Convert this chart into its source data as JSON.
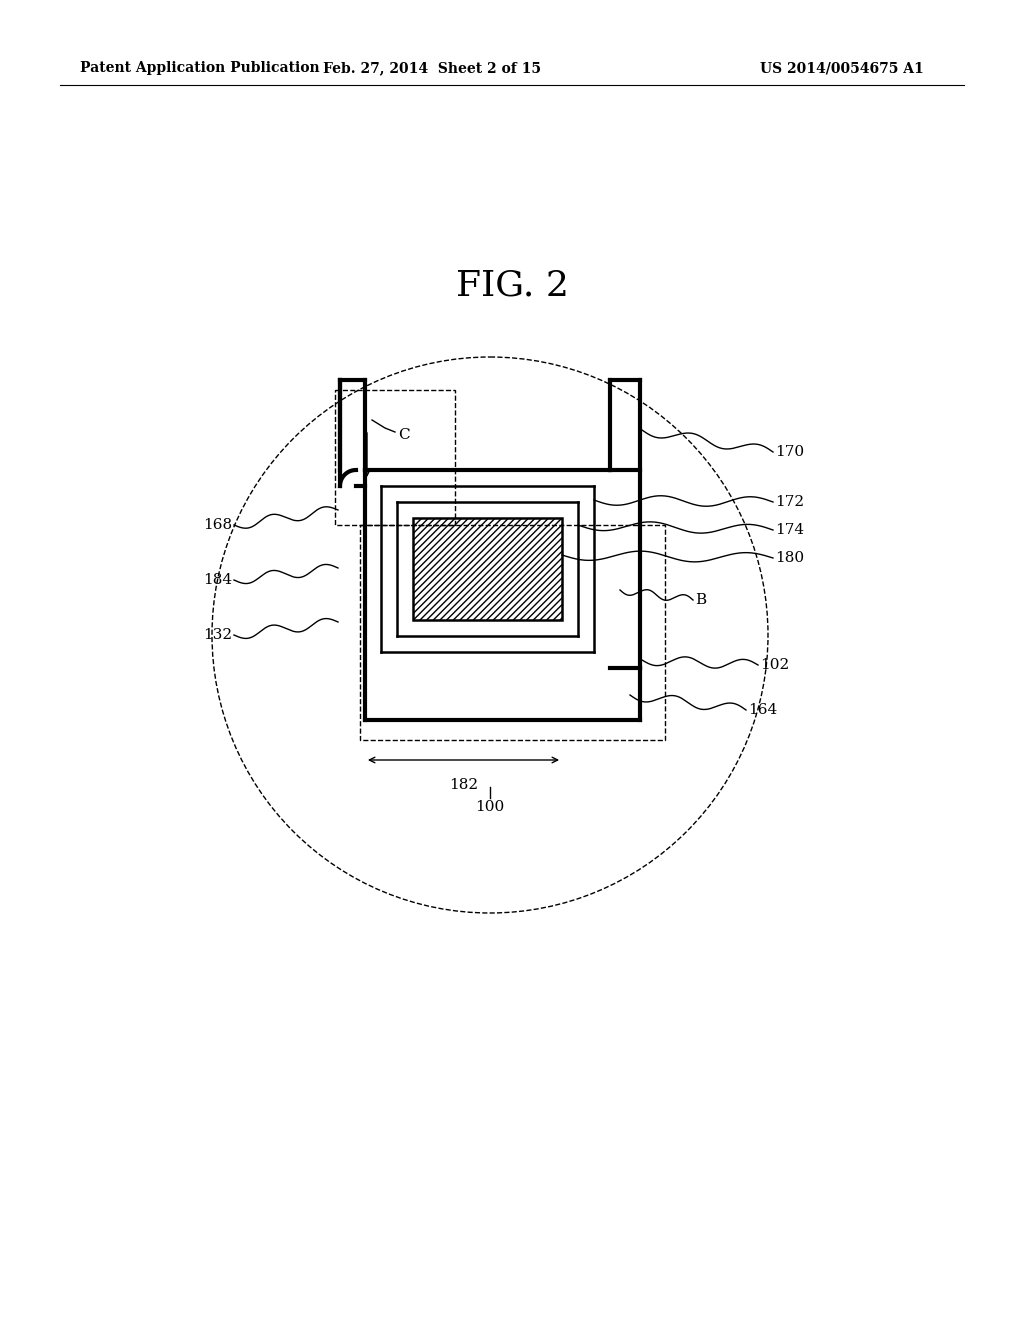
{
  "header_left": "Patent Application Publication",
  "header_mid": "Feb. 27, 2014  Sheet 2 of 15",
  "header_right": "US 2014/0054675 A1",
  "fig_title": "FIG. 2",
  "bg_color": "#ffffff",
  "lc": "#000000"
}
